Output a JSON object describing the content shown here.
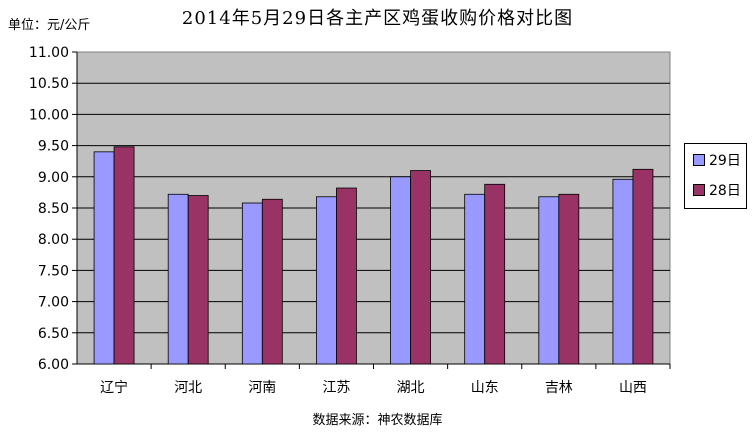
{
  "chart_data": {
    "type": "bar",
    "title": "2014年5月29日各主产区鸡蛋收购价格对比图",
    "unit_label": "单位：元/公斤",
    "source_label": "数据来源：神农数据库",
    "categories": [
      "辽宁",
      "河北",
      "河南",
      "江苏",
      "湖北",
      "山东",
      "吉林",
      "山西"
    ],
    "series": [
      {
        "name": "29日",
        "color": "#9999FF",
        "values": [
          9.4,
          8.72,
          8.58,
          8.68,
          9.0,
          8.72,
          8.68,
          8.96
        ]
      },
      {
        "name": "28日",
        "color": "#993366",
        "values": [
          9.48,
          8.7,
          8.64,
          8.82,
          9.1,
          8.88,
          8.72,
          9.12
        ]
      }
    ],
    "ylim": [
      6.0,
      11.0
    ],
    "yticks": [
      "6.00",
      "6.50",
      "7.00",
      "7.50",
      "8.00",
      "8.50",
      "9.00",
      "9.50",
      "10.00",
      "10.50",
      "11.00"
    ],
    "plot_background": "#C0C0C0",
    "grid": true,
    "legend_position": "right"
  }
}
